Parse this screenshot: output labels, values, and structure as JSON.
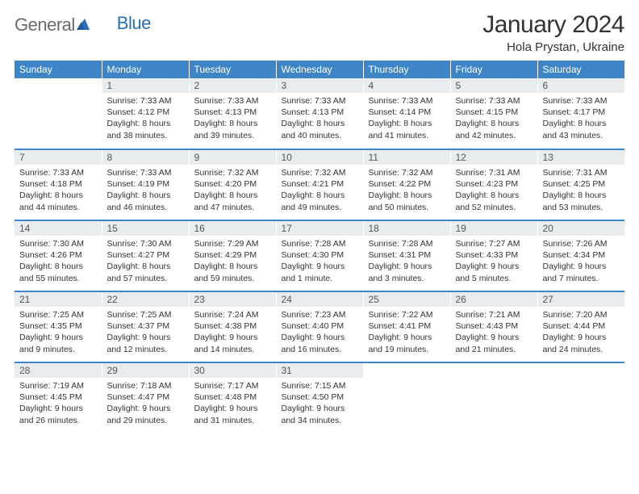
{
  "brand": {
    "part1": "General",
    "part2": "Blue"
  },
  "title": "January 2024",
  "location": "Hola Prystan, Ukraine",
  "colors": {
    "header_bg": "#3d85c6",
    "daynum_bg": "#e8ecef",
    "rule": "#3d85c6"
  },
  "weekdays": [
    "Sunday",
    "Monday",
    "Tuesday",
    "Wednesday",
    "Thursday",
    "Friday",
    "Saturday"
  ],
  "weeks": [
    [
      null,
      {
        "n": "1",
        "sr": "7:33 AM",
        "ss": "4:12 PM",
        "dl": "8 hours and 38 minutes."
      },
      {
        "n": "2",
        "sr": "7:33 AM",
        "ss": "4:13 PM",
        "dl": "8 hours and 39 minutes."
      },
      {
        "n": "3",
        "sr": "7:33 AM",
        "ss": "4:13 PM",
        "dl": "8 hours and 40 minutes."
      },
      {
        "n": "4",
        "sr": "7:33 AM",
        "ss": "4:14 PM",
        "dl": "8 hours and 41 minutes."
      },
      {
        "n": "5",
        "sr": "7:33 AM",
        "ss": "4:15 PM",
        "dl": "8 hours and 42 minutes."
      },
      {
        "n": "6",
        "sr": "7:33 AM",
        "ss": "4:17 PM",
        "dl": "8 hours and 43 minutes."
      }
    ],
    [
      {
        "n": "7",
        "sr": "7:33 AM",
        "ss": "4:18 PM",
        "dl": "8 hours and 44 minutes."
      },
      {
        "n": "8",
        "sr": "7:33 AM",
        "ss": "4:19 PM",
        "dl": "8 hours and 46 minutes."
      },
      {
        "n": "9",
        "sr": "7:32 AM",
        "ss": "4:20 PM",
        "dl": "8 hours and 47 minutes."
      },
      {
        "n": "10",
        "sr": "7:32 AM",
        "ss": "4:21 PM",
        "dl": "8 hours and 49 minutes."
      },
      {
        "n": "11",
        "sr": "7:32 AM",
        "ss": "4:22 PM",
        "dl": "8 hours and 50 minutes."
      },
      {
        "n": "12",
        "sr": "7:31 AM",
        "ss": "4:23 PM",
        "dl": "8 hours and 52 minutes."
      },
      {
        "n": "13",
        "sr": "7:31 AM",
        "ss": "4:25 PM",
        "dl": "8 hours and 53 minutes."
      }
    ],
    [
      {
        "n": "14",
        "sr": "7:30 AM",
        "ss": "4:26 PM",
        "dl": "8 hours and 55 minutes."
      },
      {
        "n": "15",
        "sr": "7:30 AM",
        "ss": "4:27 PM",
        "dl": "8 hours and 57 minutes."
      },
      {
        "n": "16",
        "sr": "7:29 AM",
        "ss": "4:29 PM",
        "dl": "8 hours and 59 minutes."
      },
      {
        "n": "17",
        "sr": "7:28 AM",
        "ss": "4:30 PM",
        "dl": "9 hours and 1 minute."
      },
      {
        "n": "18",
        "sr": "7:28 AM",
        "ss": "4:31 PM",
        "dl": "9 hours and 3 minutes."
      },
      {
        "n": "19",
        "sr": "7:27 AM",
        "ss": "4:33 PM",
        "dl": "9 hours and 5 minutes."
      },
      {
        "n": "20",
        "sr": "7:26 AM",
        "ss": "4:34 PM",
        "dl": "9 hours and 7 minutes."
      }
    ],
    [
      {
        "n": "21",
        "sr": "7:25 AM",
        "ss": "4:35 PM",
        "dl": "9 hours and 9 minutes."
      },
      {
        "n": "22",
        "sr": "7:25 AM",
        "ss": "4:37 PM",
        "dl": "9 hours and 12 minutes."
      },
      {
        "n": "23",
        "sr": "7:24 AM",
        "ss": "4:38 PM",
        "dl": "9 hours and 14 minutes."
      },
      {
        "n": "24",
        "sr": "7:23 AM",
        "ss": "4:40 PM",
        "dl": "9 hours and 16 minutes."
      },
      {
        "n": "25",
        "sr": "7:22 AM",
        "ss": "4:41 PM",
        "dl": "9 hours and 19 minutes."
      },
      {
        "n": "26",
        "sr": "7:21 AM",
        "ss": "4:43 PM",
        "dl": "9 hours and 21 minutes."
      },
      {
        "n": "27",
        "sr": "7:20 AM",
        "ss": "4:44 PM",
        "dl": "9 hours and 24 minutes."
      }
    ],
    [
      {
        "n": "28",
        "sr": "7:19 AM",
        "ss": "4:45 PM",
        "dl": "9 hours and 26 minutes."
      },
      {
        "n": "29",
        "sr": "7:18 AM",
        "ss": "4:47 PM",
        "dl": "9 hours and 29 minutes."
      },
      {
        "n": "30",
        "sr": "7:17 AM",
        "ss": "4:48 PM",
        "dl": "9 hours and 31 minutes."
      },
      {
        "n": "31",
        "sr": "7:15 AM",
        "ss": "4:50 PM",
        "dl": "9 hours and 34 minutes."
      },
      null,
      null,
      null
    ]
  ],
  "labels": {
    "sunrise": "Sunrise:",
    "sunset": "Sunset:",
    "daylight": "Daylight:"
  }
}
